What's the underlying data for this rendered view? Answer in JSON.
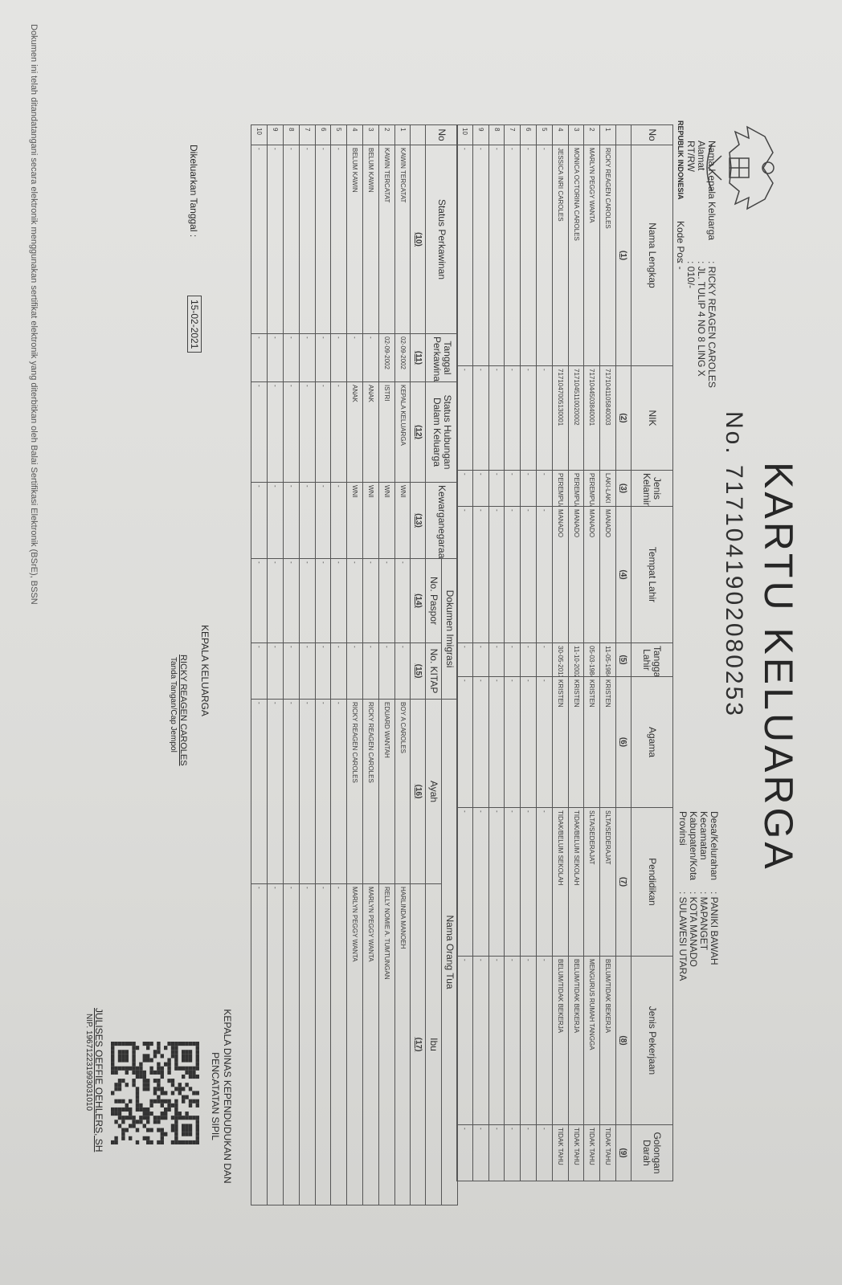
{
  "title": "KARTU KELUARGA",
  "kk_number": "No. 7171041902080253",
  "country": "REPUBLIK INDONESIA",
  "header_left": [
    {
      "label": "Nama Kepala Keluarga",
      "value": ": RICKY REAGEN CAROLES"
    },
    {
      "label": "Alamat",
      "value": ": JL. TULIP 4 NO 8 LING X"
    },
    {
      "label": "RT/RW",
      "value": ": 010/-"
    },
    {
      "label": "Kode Pos",
      "value": ": -"
    }
  ],
  "header_right": [
    {
      "label": "Desa/Kelurahan",
      "value": ": PANIKI BAWAH"
    },
    {
      "label": "Kecamatan",
      "value": ": MAPANGET"
    },
    {
      "label": "Kabupaten/Kota",
      "value": ": KOTA MANADO"
    },
    {
      "label": "Provinsi",
      "value": ": SULAWESI UTARA"
    }
  ],
  "table1": {
    "headers": [
      "No",
      "Nama Lengkap",
      "NIK",
      "Jenis Kelamin",
      "Tempat Lahir",
      "Tanggal Lahir",
      "Agama",
      "Pendidikan",
      "Jenis Pekerjaan",
      "Golongan Darah"
    ],
    "numbers": [
      "",
      "(1)",
      "(2)",
      "(3)",
      "(4)",
      "(5)",
      "(6)",
      "(7)",
      "(8)",
      "(9)"
    ],
    "rows": [
      [
        "1",
        "RICKY REAGEN CAROLES",
        "7171041105840003",
        "LAKI-LAKI",
        "MANADO",
        "11-05-1984",
        "KRISTEN",
        "SLTA/SEDERAJAT",
        "BELUM/TIDAK BEKERJA",
        "TIDAK TAHU"
      ],
      [
        "2",
        "MARLYN PEGGY WANTA",
        "7171044503840001",
        "PEREMPUAN",
        "MANADO",
        "05-03-1984",
        "KRISTEN",
        "SLTA/SEDERAJAT",
        "MENGURUS RUMAH TANGGA",
        "TIDAK TAHU"
      ],
      [
        "3",
        "MONICA OCTORINA CAROLES",
        "7171045110020002",
        "PEREMPUAN",
        "MANADO",
        "11-10-2002",
        "KRISTEN",
        "TIDAK/BELUM SEKOLAH",
        "BELUM/TIDAK BEKERJA",
        "TIDAK TAHU"
      ],
      [
        "4",
        "JESSICA INRI CAROLES",
        "7171047005130001",
        "PEREMPUAN",
        "MANADO",
        "30-05-2013",
        "KRISTEN",
        "TIDAK/BELUM SEKOLAH",
        "BELUM/TIDAK BEKERJA",
        "TIDAK TAHU"
      ],
      [
        "5",
        "-",
        "-",
        "-",
        "-",
        "-",
        "-",
        "-",
        "-",
        "-"
      ],
      [
        "6",
        "-",
        "-",
        "-",
        "-",
        "-",
        "-",
        "-",
        "-",
        "-"
      ],
      [
        "7",
        "-",
        "-",
        "-",
        "-",
        "-",
        "-",
        "-",
        "-",
        "-"
      ],
      [
        "8",
        "-",
        "-",
        "-",
        "-",
        "-",
        "-",
        "-",
        "-",
        "-"
      ],
      [
        "9",
        "-",
        "-",
        "-",
        "-",
        "-",
        "-",
        "-",
        "-",
        "-"
      ],
      [
        "10",
        "-",
        "-",
        "-",
        "-",
        "-",
        "-",
        "-",
        "-",
        "-"
      ]
    ]
  },
  "table2": {
    "group_headers": {
      "imigrasi": "Dokumen Imigrasi",
      "orang_tua": "Nama Orang Tua"
    },
    "headers": [
      "No",
      "Status Perkawinan",
      "Tanggal Perkawinan",
      "Status Hubungan Dalam Keluarga",
      "Kewarganegaraan",
      "No. Paspor",
      "No. KITAP",
      "Ayah",
      "Ibu"
    ],
    "numbers": [
      "",
      "(10)",
      "(11)",
      "(12)",
      "(13)",
      "(14)",
      "(15)",
      "(16)",
      "(17)"
    ],
    "rows": [
      [
        "1",
        "KAWIN TERCATAT",
        "02-09-2002",
        "KEPALA KELUARGA",
        "WNI",
        "-",
        "-",
        "BOY A CAROLES",
        "HARLINDA MANOEH"
      ],
      [
        "2",
        "KAWIN TERCATAT",
        "02-09-2002",
        "ISTRI",
        "WNI",
        "-",
        "-",
        "EDUARD WANTAH",
        "RELLY NOMIE A. TUMTUNGAN"
      ],
      [
        "3",
        "BELUM KAWIN",
        "-",
        "ANAK",
        "WNI",
        "-",
        "-",
        "RICKY REAGEN CAROLES",
        "MARLYN PEGGY WANTA"
      ],
      [
        "4",
        "BELUM KAWIN",
        "-",
        "ANAK",
        "WNI",
        "-",
        "-",
        "RICKY REAGEN CAROLES",
        "MARLYN PEGGY WANTA"
      ],
      [
        "5",
        "-",
        "-",
        "-",
        "-",
        "-",
        "-",
        "-",
        "-"
      ],
      [
        "6",
        "-",
        "-",
        "-",
        "-",
        "-",
        "-",
        "-",
        "-"
      ],
      [
        "7",
        "-",
        "-",
        "-",
        "-",
        "-",
        "-",
        "-",
        "-"
      ],
      [
        "8",
        "-",
        "-",
        "-",
        "-",
        "-",
        "-",
        "-",
        "-"
      ],
      [
        "9",
        "-",
        "-",
        "-",
        "-",
        "-",
        "-",
        "-",
        "-"
      ],
      [
        "10",
        "-",
        "-",
        "-",
        "-",
        "-",
        "-",
        "-",
        "-"
      ]
    ]
  },
  "issued": {
    "label": "Dikeluarkan Tanggal :",
    "date": "15-02-2021"
  },
  "head_sign": {
    "title": "KEPALA KELUARGA",
    "name": "RICKY REAGEN CAROLES",
    "caption": "Tanda Tangan/Cap Jempol"
  },
  "official": {
    "title": "KEPALA DINAS KEPENDUDUKAN DAN PENCATATAN SIPIL",
    "name": "JULISES OEFFIE OEHLERS, SH",
    "nip": "NIP. 196712231993031010"
  },
  "footer": "Dokumen ini telah ditandatangani secara elektronik menggunakan sertifikat elektronik yang diterbitkan oleh Balai Sertifikasi Elektronik (BSrE), BSSN",
  "icons": {
    "emblem": "garuda-emblem-icon",
    "qr": "qr-code"
  }
}
